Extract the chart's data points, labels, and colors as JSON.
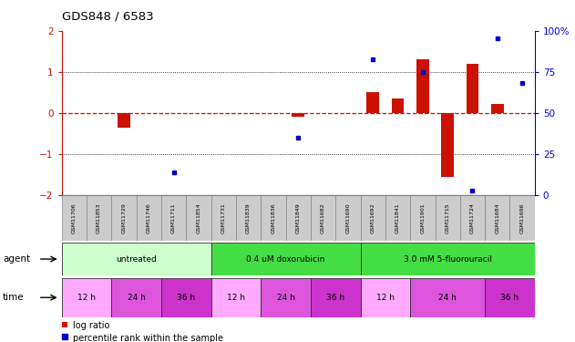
{
  "title": "GDS848 / 6583",
  "samples": [
    "GSM11706",
    "GSM11853",
    "GSM11729",
    "GSM11746",
    "GSM11711",
    "GSM11854",
    "GSM11731",
    "GSM11839",
    "GSM11836",
    "GSM11849",
    "GSM11682",
    "GSM11690",
    "GSM11692",
    "GSM11841",
    "GSM11901",
    "GSM11715",
    "GSM11724",
    "GSM11684",
    "GSM11696"
  ],
  "log_ratio": [
    0.0,
    0.0,
    -0.35,
    0.0,
    0.0,
    0.0,
    0.0,
    0.0,
    0.0,
    -0.1,
    0.0,
    0.0,
    0.5,
    0.35,
    1.3,
    -1.55,
    1.2,
    0.22,
    0.0
  ],
  "pct_rank": [
    null,
    null,
    null,
    null,
    -1.45,
    null,
    null,
    null,
    null,
    -0.6,
    null,
    null,
    1.3,
    null,
    1.0,
    null,
    -1.9,
    1.82,
    0.72
  ],
  "agent_groups": [
    {
      "label": "untreated",
      "start": 0,
      "end": 6,
      "color": "#ccffcc"
    },
    {
      "label": "0.4 uM doxorubicin",
      "start": 6,
      "end": 12,
      "color": "#44dd44"
    },
    {
      "label": "3.0 mM 5-fluorouracil",
      "start": 12,
      "end": 19,
      "color": "#44dd44"
    }
  ],
  "time_groups": [
    {
      "label": "12 h",
      "start": 0,
      "end": 2,
      "color": "#ffaaff"
    },
    {
      "label": "24 h",
      "start": 2,
      "end": 4,
      "color": "#dd55dd"
    },
    {
      "label": "36 h",
      "start": 4,
      "end": 6,
      "color": "#cc33cc"
    },
    {
      "label": "12 h",
      "start": 6,
      "end": 8,
      "color": "#ffaaff"
    },
    {
      "label": "24 h",
      "start": 8,
      "end": 10,
      "color": "#dd55dd"
    },
    {
      "label": "36 h",
      "start": 10,
      "end": 12,
      "color": "#cc33cc"
    },
    {
      "label": "12 h",
      "start": 12,
      "end": 14,
      "color": "#ffaaff"
    },
    {
      "label": "24 h",
      "start": 14,
      "end": 17,
      "color": "#dd55dd"
    },
    {
      "label": "36 h",
      "start": 17,
      "end": 19,
      "color": "#cc33cc"
    }
  ],
  "ylim": [
    -2.0,
    2.0
  ],
  "bar_color": "#cc1100",
  "dot_color": "#0000cc",
  "bg_color": "#ffffff",
  "sample_box_color": "#cccccc",
  "sample_box_edge": "#888888"
}
